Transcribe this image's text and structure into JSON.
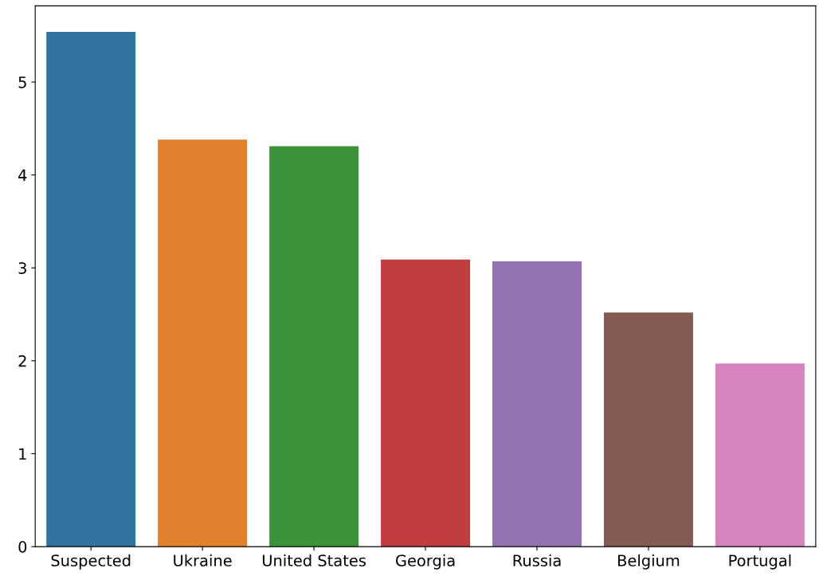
{
  "chart_data": {
    "type": "bar",
    "categories": [
      "Suspected",
      "Ukraine",
      "United States",
      "Georgia",
      "Russia",
      "Belgium",
      "Portugal"
    ],
    "values": [
      5.54,
      4.38,
      4.31,
      3.09,
      3.07,
      2.52,
      1.97
    ],
    "colors": [
      "#3274a1",
      "#e1812c",
      "#3a923a",
      "#c03d3e",
      "#9372b2",
      "#845b53",
      "#d684bd"
    ],
    "ylim": [
      0,
      5.82
    ],
    "yticks": [
      0,
      1,
      2,
      3,
      4,
      5
    ],
    "grid": false
  }
}
